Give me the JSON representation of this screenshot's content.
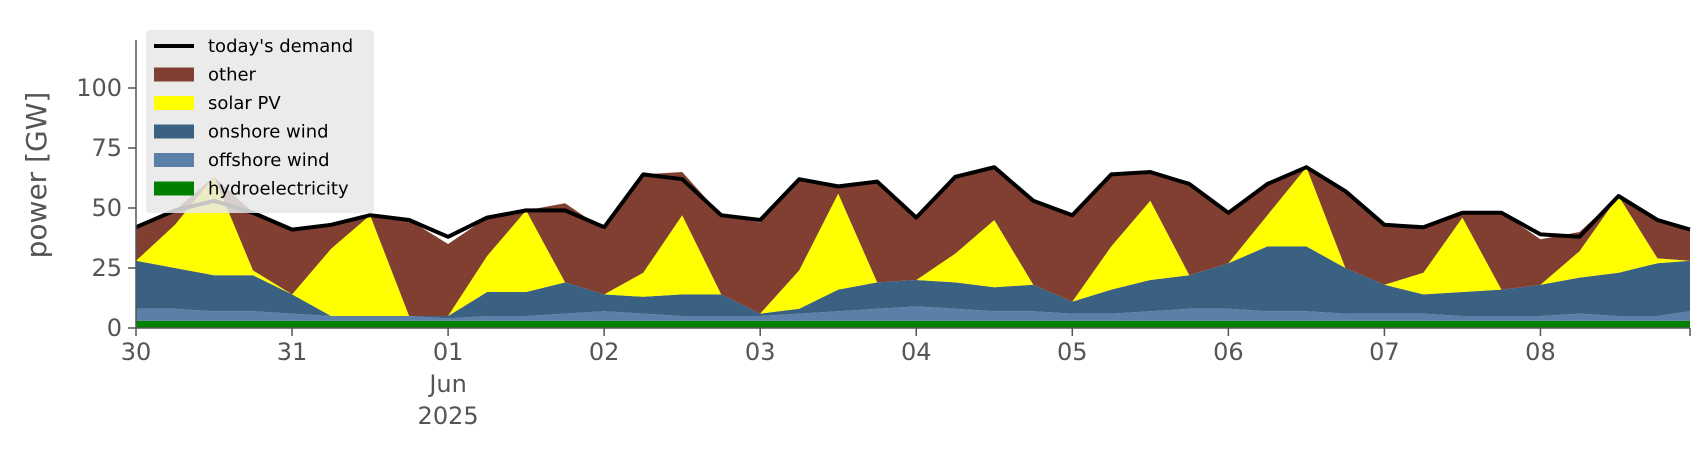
{
  "chart_data": {
    "type": "area",
    "stacked": true,
    "ylabel": "power [GW]",
    "ylim": [
      0,
      120
    ],
    "yticks": [
      0,
      25,
      50,
      75,
      100
    ],
    "x_start": "2025-05-30",
    "x_end": "2025-06-08 23:00",
    "xticks": [
      {
        "date": "2025-05-30",
        "label": "30"
      },
      {
        "date": "2025-05-31",
        "label": "31"
      },
      {
        "date": "2025-06-01",
        "label": "01",
        "sublabel": "Jun",
        "sublabel2": "2025"
      },
      {
        "date": "2025-06-02",
        "label": "02"
      },
      {
        "date": "2025-06-03",
        "label": "03"
      },
      {
        "date": "2025-06-04",
        "label": "04"
      },
      {
        "date": "2025-06-05",
        "label": "05"
      },
      {
        "date": "2025-06-06",
        "label": "06"
      },
      {
        "date": "2025-06-07",
        "label": "07"
      },
      {
        "date": "2025-06-08",
        "label": "08"
      }
    ],
    "grid": false,
    "legend_position": "top-left",
    "x": [
      "2025-05-30 00:00",
      "2025-05-30 06:00",
      "2025-05-30 12:00",
      "2025-05-30 18:00",
      "2025-05-31 00:00",
      "2025-05-31 06:00",
      "2025-05-31 12:00",
      "2025-05-31 18:00",
      "2025-06-01 00:00",
      "2025-06-01 06:00",
      "2025-06-01 12:00",
      "2025-06-01 18:00",
      "2025-06-02 00:00",
      "2025-06-02 06:00",
      "2025-06-02 12:00",
      "2025-06-02 18:00",
      "2025-06-03 00:00",
      "2025-06-03 06:00",
      "2025-06-03 12:00",
      "2025-06-03 18:00",
      "2025-06-04 00:00",
      "2025-06-04 06:00",
      "2025-06-04 12:00",
      "2025-06-04 18:00",
      "2025-06-05 00:00",
      "2025-06-05 06:00",
      "2025-06-05 12:00",
      "2025-06-05 18:00",
      "2025-06-06 00:00",
      "2025-06-06 06:00",
      "2025-06-06 12:00",
      "2025-06-06 18:00",
      "2025-06-07 00:00",
      "2025-06-07 06:00",
      "2025-06-07 12:00",
      "2025-06-07 18:00",
      "2025-06-08 00:00",
      "2025-06-08 06:00",
      "2025-06-08 12:00",
      "2025-06-08 18:00",
      "2025-06-08 23:00"
    ],
    "series": [
      {
        "name": "hydroelectricity",
        "color": "#008000",
        "values": [
          3,
          3,
          3,
          3,
          3,
          3,
          3,
          3,
          3,
          3,
          3,
          3,
          3,
          3,
          3,
          3,
          3,
          3,
          3,
          3,
          3,
          3,
          3,
          3,
          3,
          3,
          3,
          3,
          3,
          3,
          3,
          3,
          3,
          3,
          3,
          3,
          3,
          3,
          3,
          3,
          3
        ]
      },
      {
        "name": "offshore wind",
        "color": "#5b80a8",
        "values": [
          5,
          5,
          4,
          4,
          3,
          2,
          2,
          2,
          1,
          2,
          2,
          3,
          4,
          3,
          2,
          2,
          2,
          3,
          4,
          5,
          6,
          5,
          4,
          4,
          3,
          3,
          4,
          5,
          5,
          4,
          4,
          3,
          3,
          3,
          2,
          2,
          2,
          3,
          2,
          2,
          4
        ]
      },
      {
        "name": "onshore wind",
        "color": "#3b6182",
        "values": [
          20,
          17,
          15,
          15,
          8,
          0,
          0,
          0,
          1,
          10,
          10,
          13,
          7,
          7,
          9,
          9,
          1,
          2,
          9,
          11,
          11,
          11,
          10,
          11,
          5,
          10,
          13,
          14,
          19,
          27,
          27,
          19,
          12,
          8,
          10,
          11,
          13,
          15,
          18,
          22,
          21
        ]
      },
      {
        "name": "solar PV",
        "color": "#ffff00",
        "values": [
          0,
          18,
          41,
          2,
          0,
          28,
          42,
          0,
          0,
          15,
          34,
          0,
          0,
          10,
          33,
          0,
          0,
          16,
          40,
          0,
          0,
          12,
          28,
          0,
          0,
          18,
          33,
          0,
          0,
          13,
          33,
          0,
          0,
          9,
          31,
          0,
          0,
          11,
          32,
          2,
          0
        ]
      },
      {
        "name": "other",
        "color": "#803f31",
        "values": [
          14,
          6,
          0,
          24,
          27,
          10,
          0,
          40,
          30,
          16,
          0,
          33,
          27,
          41,
          18,
          33,
          38,
          38,
          3,
          42,
          26,
          32,
          22,
          35,
          36,
          30,
          12,
          39,
          21,
          13,
          0,
          32,
          25,
          19,
          2,
          32,
          19,
          8,
          0,
          16,
          13
        ]
      }
    ],
    "demand": {
      "name": "today's demand",
      "color": "#000000",
      "values": [
        42,
        49,
        53,
        48,
        41,
        43,
        47,
        45,
        38,
        46,
        49,
        49,
        42,
        64,
        62,
        47,
        45,
        62,
        59,
        61,
        46,
        63,
        67,
        53,
        47,
        64,
        65,
        60,
        48,
        60,
        67,
        57,
        43,
        42,
        48,
        48,
        39,
        38,
        55,
        45,
        41
      ]
    }
  }
}
